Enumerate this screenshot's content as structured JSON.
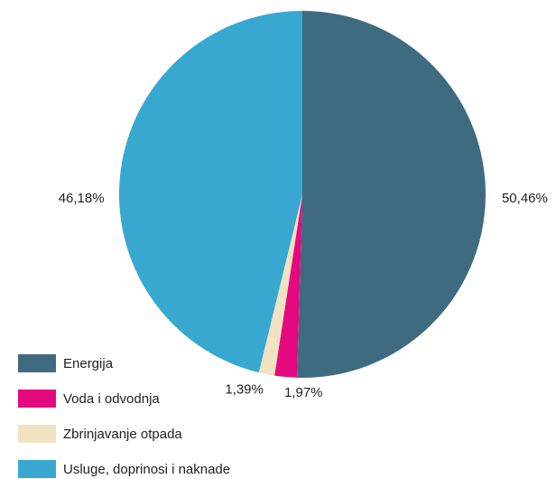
{
  "chart_data": {
    "type": "pie",
    "categories": [
      "Energija",
      "Voda i odvodnja",
      "Zbrinjavanje otpada",
      "Usluge, doprinosi i naknade"
    ],
    "values": [
      50.46,
      1.97,
      1.39,
      46.18
    ],
    "value_labels": [
      "50,46%",
      "1,97%",
      "1,39%",
      "46,18%"
    ],
    "colors": [
      "#3e6b80",
      "#e5097f",
      "#f1e2c2",
      "#38a8d0"
    ],
    "legend": "bottom-left"
  }
}
